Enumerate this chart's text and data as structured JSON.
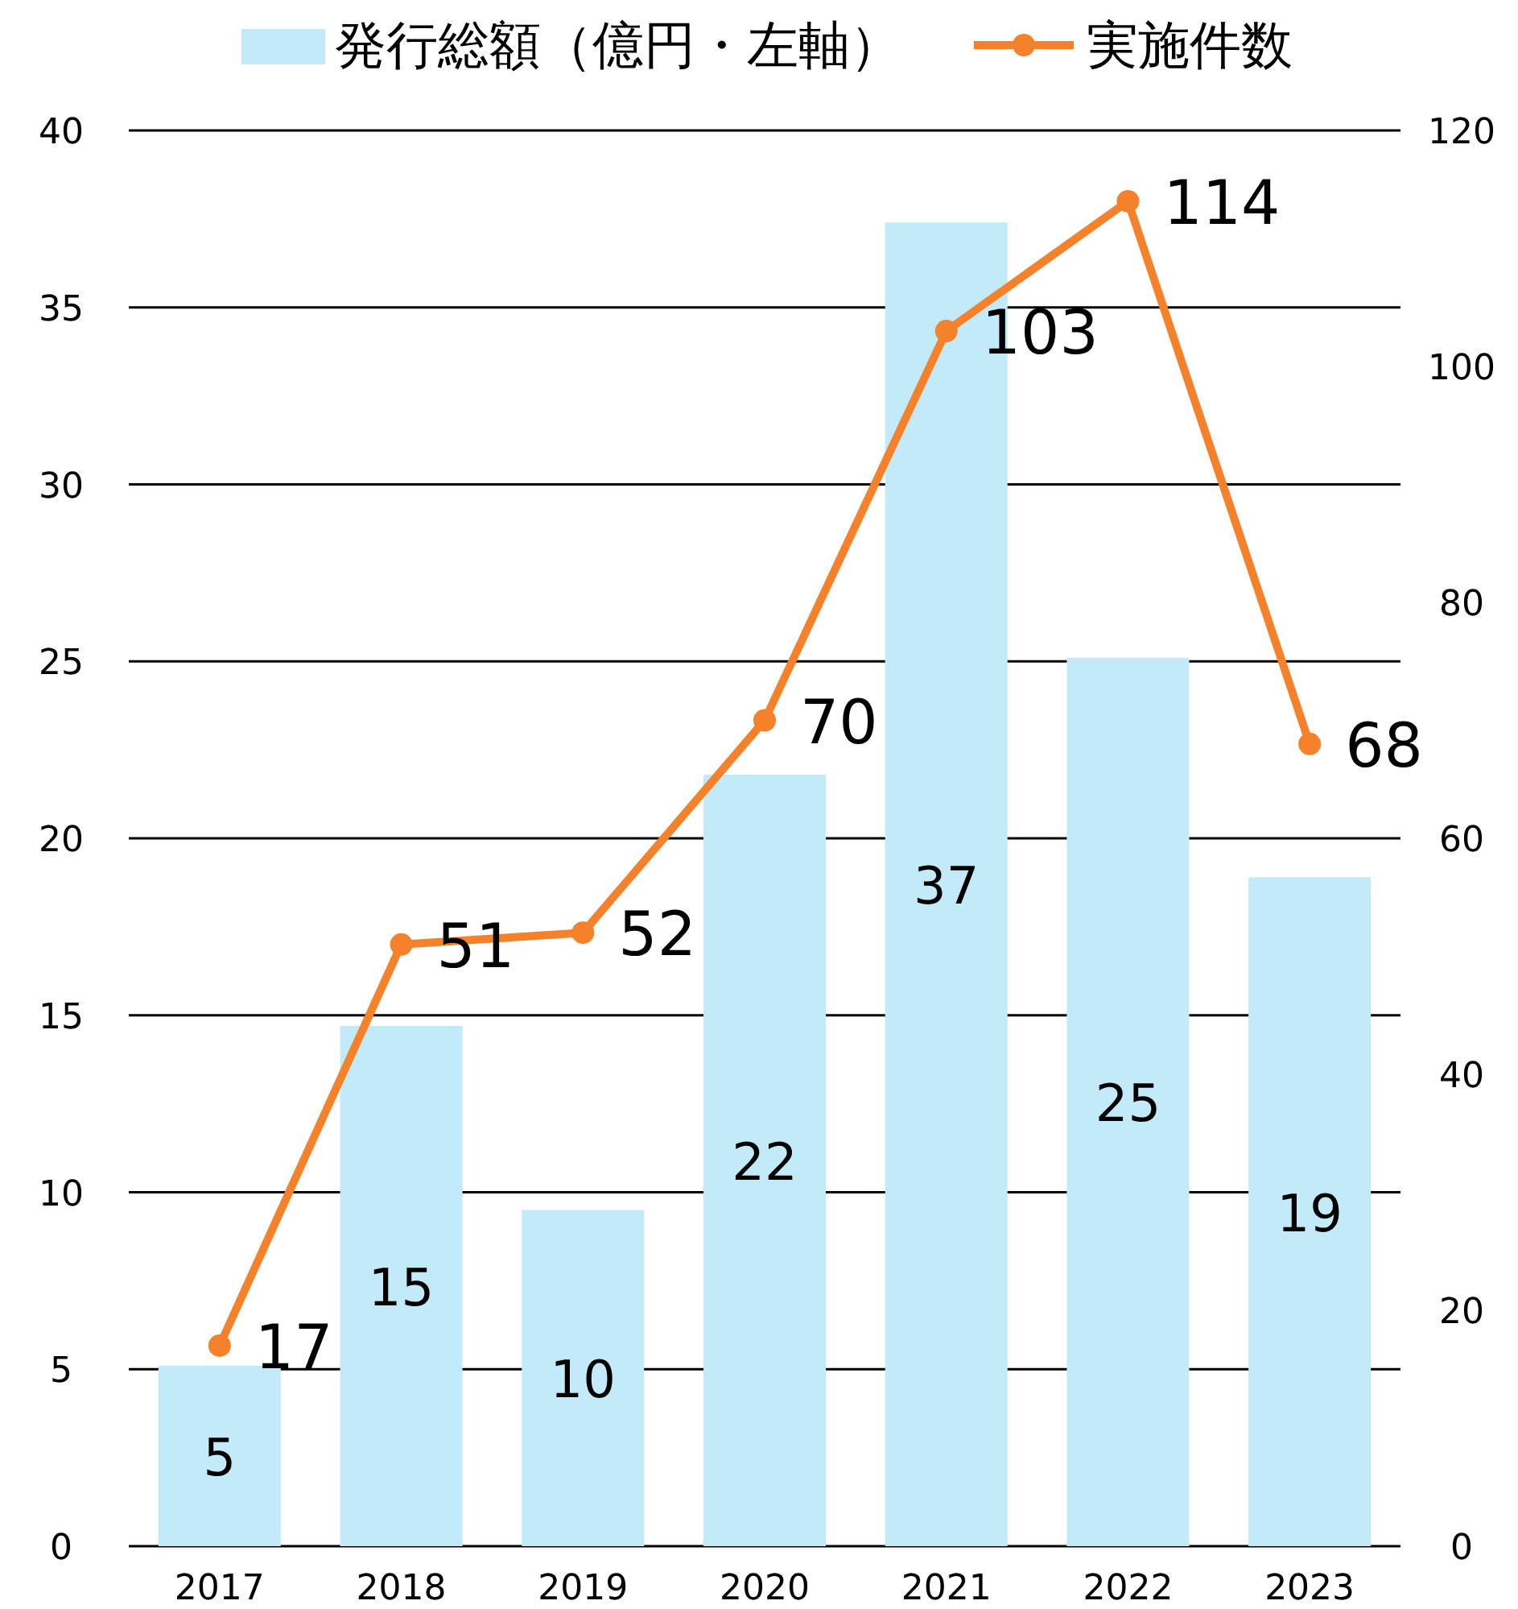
{
  "chart_data": {
    "type": "bar",
    "categories": [
      "2017",
      "2018",
      "2019",
      "2020",
      "2021",
      "2022",
      "2023"
    ],
    "series": [
      {
        "name": "発行総額（億円・左軸）",
        "color": "#c3eaf8",
        "values": [
          5.1,
          14.7,
          9.5,
          21.8,
          37.4,
          25.1,
          18.9
        ],
        "value_labels": [
          "5",
          "15",
          "10",
          "22",
          "37",
          "25",
          "19"
        ]
      },
      {
        "name": "実施件数",
        "type": "line",
        "axis": "y2",
        "color": "#f5822a",
        "values": [
          17,
          51,
          52,
          70,
          103,
          114,
          68
        ],
        "value_labels": [
          "17",
          "51",
          "52",
          "70",
          "103",
          "114",
          "68"
        ]
      }
    ],
    "ylim": [
      0,
      40
    ],
    "yticks": [
      0,
      5,
      10,
      15,
      20,
      25,
      30,
      35,
      40
    ],
    "y2lim": [
      0,
      120
    ],
    "y2ticks": [
      0,
      20,
      40,
      60,
      80,
      100,
      120
    ],
    "grid": "y",
    "legend": "top",
    "marker": "circle",
    "line_style": "solid"
  }
}
